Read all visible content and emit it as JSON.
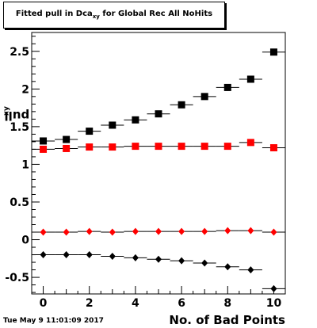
{
  "chart_data": {
    "type": "scatter",
    "title": {
      "main": "Fitted pull in Dca",
      "sub": "xy",
      "rest": " for Global Rec All NoHits"
    },
    "xlabel": "No. of Bad Points",
    "ylabel": {
      "main": "pull in Dca",
      "sub": "xy"
    },
    "xlim": [
      -0.5,
      10.5
    ],
    "ylim": [
      -0.72,
      2.75
    ],
    "xticks": [
      0,
      2,
      4,
      6,
      8,
      10
    ],
    "xtick_labels": [
      "0",
      "2",
      "4",
      "6",
      "8",
      "10"
    ],
    "yticks": [
      -0.5,
      0,
      0.5,
      1,
      1.5,
      2,
      2.5
    ],
    "ytick_labels": [
      "-0.5",
      "0",
      "0.5",
      "1",
      "1.5",
      "2",
      "2.5"
    ],
    "grid": false,
    "legend": "none",
    "x": [
      0,
      1,
      2,
      3,
      4,
      5,
      6,
      7,
      8,
      9,
      10
    ],
    "series": [
      {
        "marker": "square",
        "color": "#000000",
        "values": [
          1.31,
          1.33,
          1.44,
          1.52,
          1.59,
          1.67,
          1.79,
          1.9,
          2.02,
          2.13,
          2.49
        ]
      },
      {
        "marker": "square",
        "color": "#ff0000",
        "values": [
          1.2,
          1.21,
          1.23,
          1.23,
          1.24,
          1.24,
          1.24,
          1.24,
          1.24,
          1.29,
          1.22
        ]
      },
      {
        "marker": "diamond",
        "color": "#ff0000",
        "values": [
          0.1,
          0.1,
          0.11,
          0.1,
          0.11,
          0.11,
          0.11,
          0.11,
          0.12,
          0.12,
          0.1
        ]
      },
      {
        "marker": "diamond",
        "color": "#000000",
        "values": [
          -0.2,
          -0.2,
          -0.2,
          -0.22,
          -0.24,
          -0.26,
          -0.28,
          -0.31,
          -0.36,
          -0.4,
          -0.65
        ]
      }
    ]
  },
  "timestamp": "Tue May  9 11:01:09 2017"
}
